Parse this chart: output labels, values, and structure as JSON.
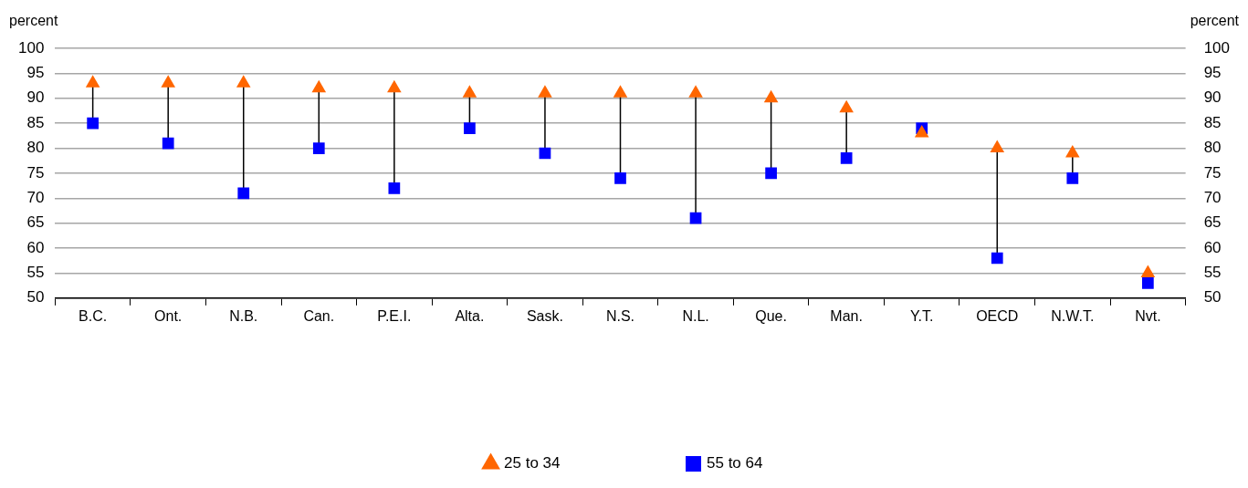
{
  "chart_data": {
    "type": "scatter",
    "ylabel": "percent",
    "y2label": "percent",
    "categories": [
      "B.C.",
      "Ont.",
      "N.B.",
      "Can.",
      "P.E.I.",
      "Alta.",
      "Sask.",
      "N.S.",
      "N.L.",
      "Que.",
      "Man.",
      "Y.T.",
      "OECD",
      "N.W.T.",
      "Nvt."
    ],
    "series": [
      {
        "name": "25 to 34",
        "color": "#ff6600",
        "marker": "triangle",
        "values": [
          93,
          93,
          93,
          92,
          92,
          91,
          91,
          91,
          91,
          90,
          88,
          83,
          80,
          79,
          55
        ]
      },
      {
        "name": "55 to 64",
        "color": "#0000ff",
        "marker": "square",
        "values": [
          85,
          81,
          71,
          80,
          72,
          84,
          79,
          74,
          66,
          75,
          78,
          84,
          58,
          74,
          53
        ]
      }
    ],
    "ylim": [
      50,
      100
    ],
    "yticks": [
      50,
      55,
      60,
      65,
      70,
      75,
      80,
      85,
      90,
      95,
      100
    ],
    "y2lim": [
      50,
      100
    ],
    "y2ticks": [
      50,
      55,
      60,
      65,
      70,
      75,
      80,
      85,
      90,
      95,
      100
    ],
    "grid": "y",
    "legend": "bottom"
  }
}
